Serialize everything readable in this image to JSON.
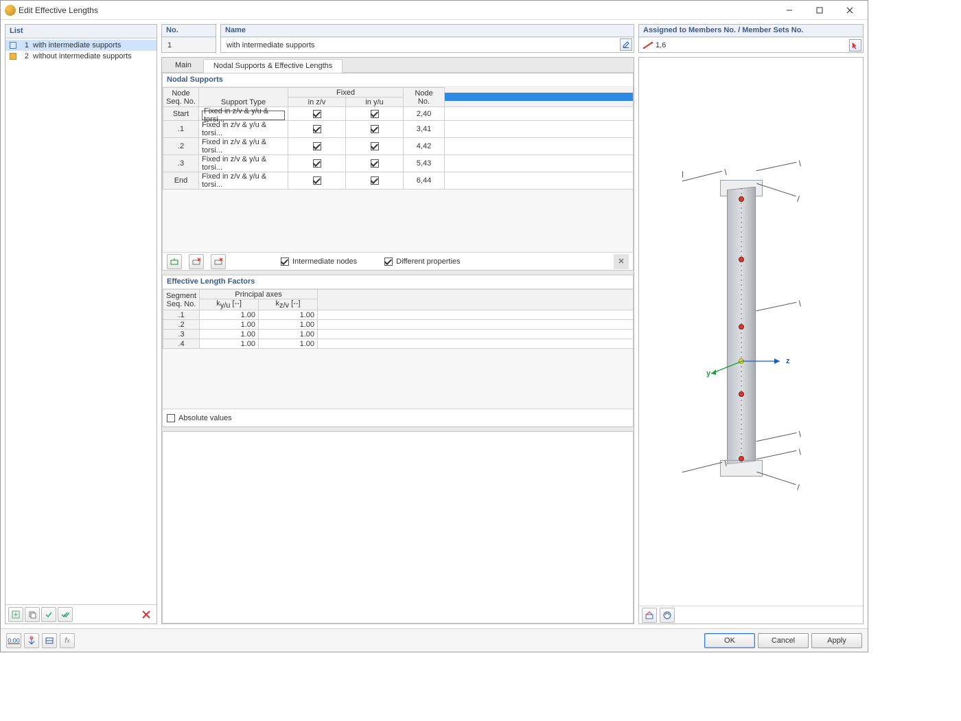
{
  "window": {
    "title": "Edit Effective Lengths"
  },
  "left_panel": {
    "header": "List",
    "items": [
      {
        "num": "1",
        "label": "with intermediate supports",
        "color": "blue",
        "selected": true
      },
      {
        "num": "2",
        "label": "without intermediate supports",
        "color": "orange",
        "selected": false
      }
    ]
  },
  "fields": {
    "no_label": "No.",
    "no_value": "1",
    "name_label": "Name",
    "name_value": "with intermediate supports",
    "assigned_label": "Assigned to Members No. / Member Sets No.",
    "assigned_value": "1,6"
  },
  "tabs": {
    "main": "Main",
    "nodal": "Nodal Supports & Effective Lengths",
    "active": "nodal"
  },
  "nodal_supports": {
    "title": "Nodal Supports",
    "headers": {
      "main": "Node\nSeq. No.",
      "support_type": "Support Type",
      "fixed": "Fixed",
      "in_zv": "in z/v",
      "in_yu": "in y/u",
      "node_no": "Node\nNo."
    },
    "rows": [
      {
        "seq": "Start",
        "type": "Fixed in z/v & y/u & torsi...",
        "zv": true,
        "yu": true,
        "node": "2,40",
        "framed": true
      },
      {
        "seq": ".1",
        "type": "Fixed in z/v & y/u & torsi...",
        "zv": true,
        "yu": true,
        "node": "3,41"
      },
      {
        "seq": ".2",
        "type": "Fixed in z/v & y/u & torsi...",
        "zv": true,
        "yu": true,
        "node": "4,42"
      },
      {
        "seq": ".3",
        "type": "Fixed in z/v & y/u & torsi...",
        "zv": true,
        "yu": true,
        "node": "5,43"
      },
      {
        "seq": "End",
        "type": "Fixed in z/v & y/u & torsi...",
        "zv": true,
        "yu": true,
        "node": "6,44"
      }
    ],
    "intermediate_nodes_label": "Intermediate nodes",
    "intermediate_nodes_checked": true,
    "different_props_label": "Different properties",
    "different_props_checked": true
  },
  "factors": {
    "title": "Effective Length Factors",
    "headers": {
      "main": "Segment\nSeq. No.",
      "principal": "Principal axes",
      "kyu": "ky/u [--]",
      "kzv": "kz/v [--]"
    },
    "rows": [
      {
        "seq": ".1",
        "kyu": "1.00",
        "kzv": "1.00"
      },
      {
        "seq": ".2",
        "kyu": "1.00",
        "kzv": "1.00"
      },
      {
        "seq": ".3",
        "kyu": "1.00",
        "kzv": "1.00"
      },
      {
        "seq": ".4",
        "kyu": "1.00",
        "kzv": "1.00"
      }
    ],
    "absolute_label": "Absolute values",
    "absolute_checked": false
  },
  "axes": {
    "y": "y",
    "z": "z"
  },
  "buttons": {
    "ok": "OK",
    "cancel": "Cancel",
    "apply": "Apply"
  },
  "colors": {
    "panel_header_bg": "#eef1f7",
    "panel_header_text": "#3b5a8c",
    "selection_bg": "#cfe3ff",
    "blue_bar": "#2f88e5",
    "node_red": "#d63a2f",
    "axis_z": "#1559d6",
    "axis_y": "#1b9e3e"
  }
}
